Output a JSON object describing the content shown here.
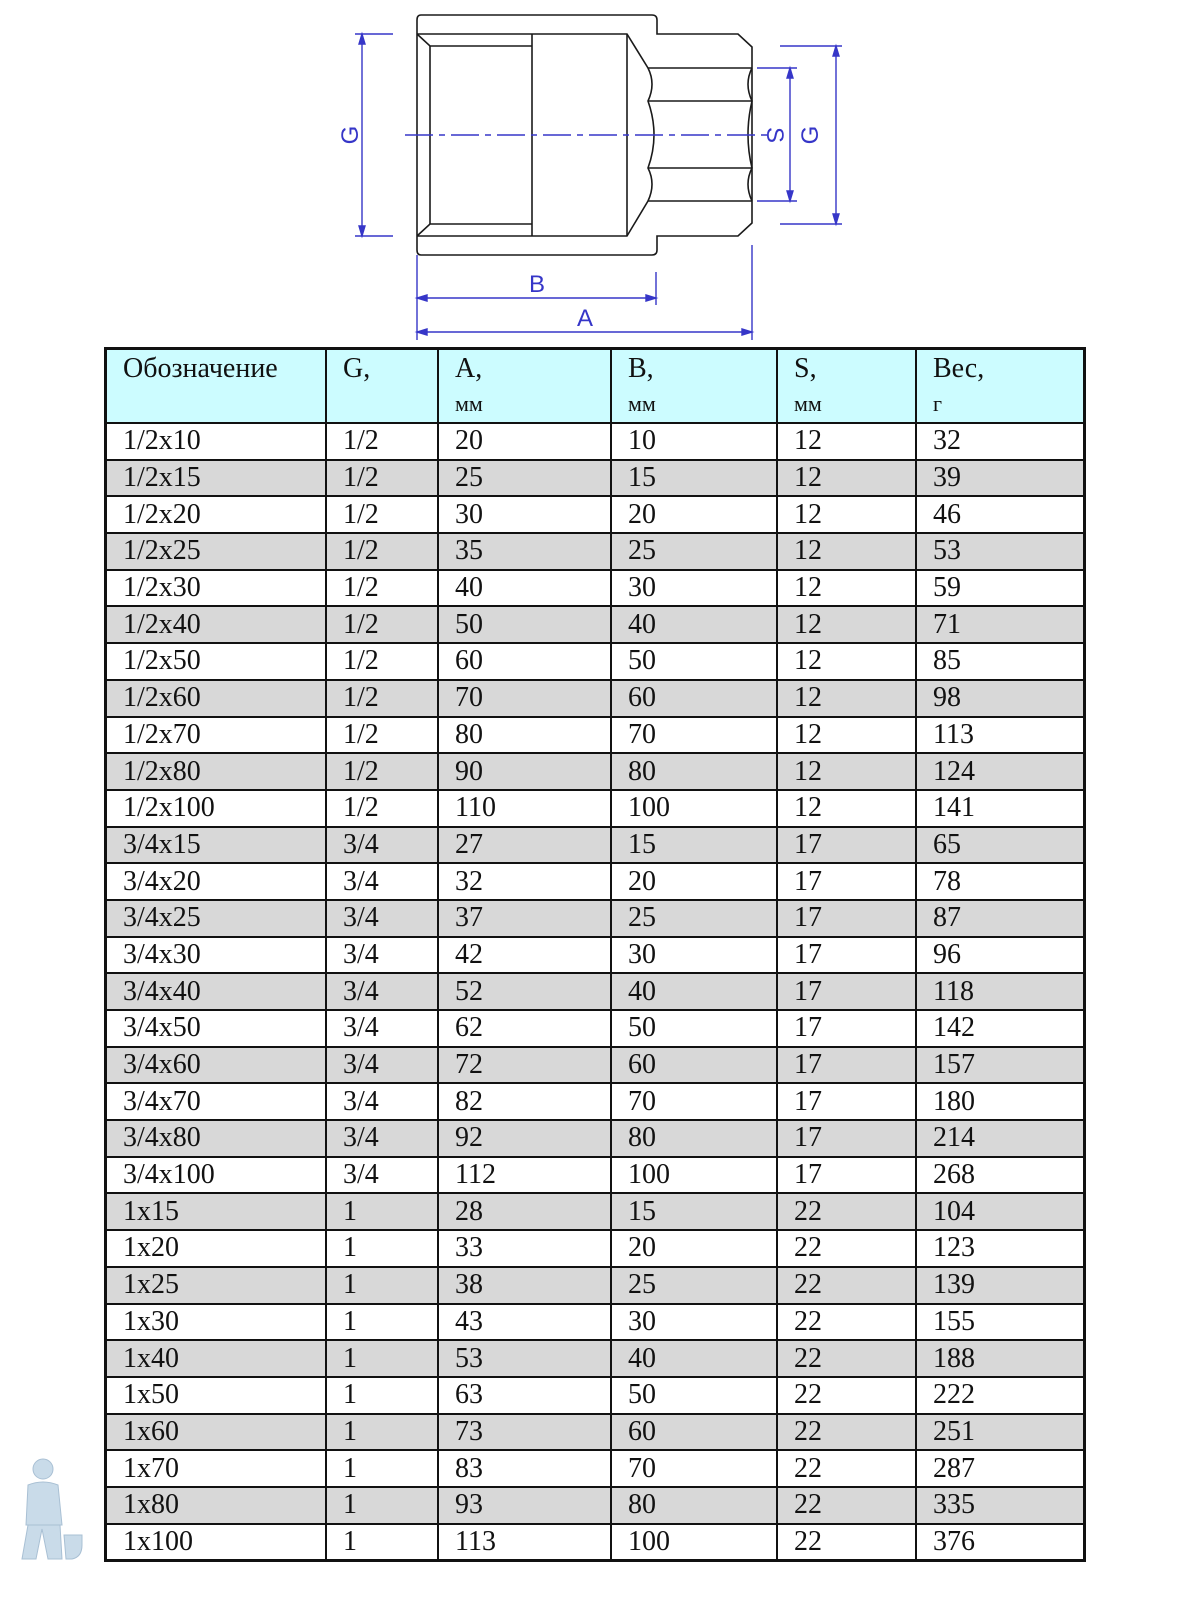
{
  "drawing": {
    "line_color": "#1a1a1a",
    "dimension_color": "#3636c8",
    "labels": {
      "g_left": "G",
      "s": "S",
      "g_right": "G",
      "b": "B",
      "a": "A"
    }
  },
  "table": {
    "header_bg": "#ccfcff",
    "alt_row_bg": "#d8d8d8",
    "headers": [
      {
        "label": "Обозначение",
        "unit": ""
      },
      {
        "label": "G,",
        "unit": ""
      },
      {
        "label": "A,",
        "unit": "мм"
      },
      {
        "label": "B,",
        "unit": "мм"
      },
      {
        "label": "S,",
        "unit": "мм"
      },
      {
        "label": "Вес,",
        "unit": "г"
      }
    ],
    "rows": [
      [
        "1/2x10",
        "1/2",
        "20",
        "10",
        "12",
        "32"
      ],
      [
        "1/2x15",
        "1/2",
        "25",
        "15",
        "12",
        "39"
      ],
      [
        "1/2x20",
        "1/2",
        "30",
        "20",
        "12",
        "46"
      ],
      [
        "1/2x25",
        "1/2",
        "35",
        "25",
        "12",
        "53"
      ],
      [
        "1/2x30",
        "1/2",
        "40",
        "30",
        "12",
        "59"
      ],
      [
        "1/2x40",
        "1/2",
        "50",
        "40",
        "12",
        "71"
      ],
      [
        "1/2x50",
        "1/2",
        "60",
        "50",
        "12",
        "85"
      ],
      [
        "1/2x60",
        "1/2",
        "70",
        "60",
        "12",
        "98"
      ],
      [
        "1/2x70",
        "1/2",
        "80",
        "70",
        "12",
        "113"
      ],
      [
        "1/2x80",
        "1/2",
        "90",
        "80",
        "12",
        "124"
      ],
      [
        "1/2x100",
        "1/2",
        "110",
        "100",
        "12",
        "141"
      ],
      [
        "3/4x15",
        "3/4",
        "27",
        "15",
        "17",
        "65"
      ],
      [
        "3/4x20",
        "3/4",
        "32",
        "20",
        "17",
        "78"
      ],
      [
        "3/4x25",
        "3/4",
        "37",
        "25",
        "17",
        "87"
      ],
      [
        "3/4x30",
        "3/4",
        "42",
        "30",
        "17",
        "96"
      ],
      [
        "3/4x40",
        "3/4",
        "52",
        "40",
        "17",
        "118"
      ],
      [
        "3/4x50",
        "3/4",
        "62",
        "50",
        "17",
        "142"
      ],
      [
        "3/4x60",
        "3/4",
        "72",
        "60",
        "17",
        "157"
      ],
      [
        "3/4x70",
        "3/4",
        "82",
        "70",
        "17",
        "180"
      ],
      [
        "3/4x80",
        "3/4",
        "92",
        "80",
        "17",
        "214"
      ],
      [
        "3/4x100",
        "3/4",
        "112",
        "100",
        "17",
        "268"
      ],
      [
        "1x15",
        "1",
        "28",
        "15",
        "22",
        "104"
      ],
      [
        "1x20",
        "1",
        "33",
        "20",
        "22",
        "123"
      ],
      [
        "1x25",
        "1",
        "38",
        "25",
        "22",
        "139"
      ],
      [
        "1x30",
        "1",
        "43",
        "30",
        "22",
        "155"
      ],
      [
        "1x40",
        "1",
        "53",
        "40",
        "22",
        "188"
      ],
      [
        "1x50",
        "1",
        "63",
        "50",
        "22",
        "222"
      ],
      [
        "1x60",
        "1",
        "73",
        "60",
        "22",
        "251"
      ],
      [
        "1x70",
        "1",
        "83",
        "70",
        "22",
        "287"
      ],
      [
        "1x80",
        "1",
        "93",
        "80",
        "22",
        "335"
      ],
      [
        "1x100",
        "1",
        "113",
        "100",
        "22",
        "376"
      ]
    ]
  }
}
